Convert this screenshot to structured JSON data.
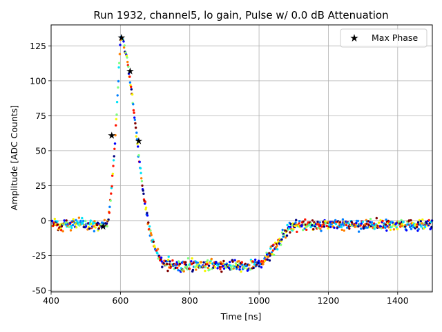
{
  "chart_data": {
    "type": "scatter",
    "title": "Run 1932, channel5, lo gain, Pulse w/ 0.0 dB Attenuation",
    "xlabel": "Time [ns]",
    "ylabel": "Amplitude [ADC Counts]",
    "xlim": [
      400,
      1500
    ],
    "ylim": [
      -51,
      140
    ],
    "xticks": [
      400,
      600,
      800,
      1000,
      1200,
      1400
    ],
    "yticks": [
      -50,
      -25,
      0,
      25,
      50,
      75,
      100,
      125
    ],
    "grid": true,
    "legend": {
      "position": "top-right",
      "entries": [
        "Max Phase"
      ]
    },
    "pulse_shape": {
      "baseline": -3,
      "rise_start": 560,
      "peak": [
        600,
        130
      ],
      "undershoot_start": 760,
      "undershoot_level": -32,
      "recovery_start": 990,
      "recovery_end": 1110
    },
    "scatter_noise_adc": 4,
    "max_phase_series": {
      "name": "Max Phase",
      "x": [
        550,
        575,
        603,
        628,
        653
      ],
      "y": [
        -4,
        61,
        131,
        107,
        57
      ]
    },
    "colors": [
      "#00007f",
      "#0000ff",
      "#007fff",
      "#00e5f7",
      "#7fff7f",
      "#f7f700",
      "#ff7f00",
      "#ff1400",
      "#7f0000"
    ]
  }
}
